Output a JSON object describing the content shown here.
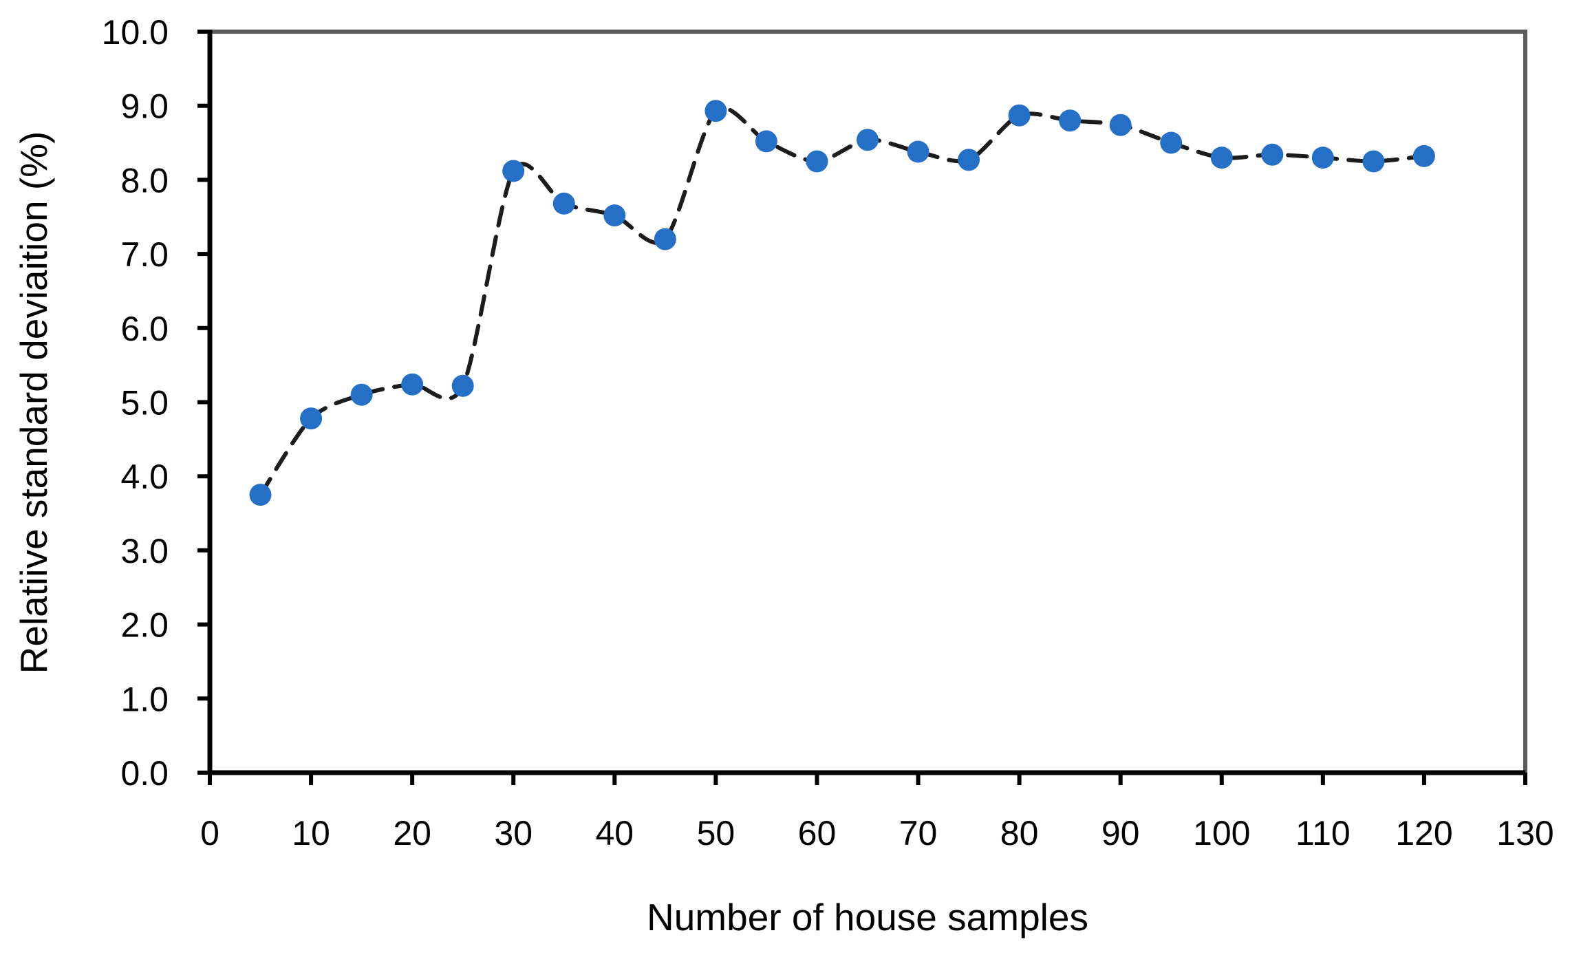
{
  "chart_data": {
    "type": "scatter",
    "title": "",
    "xlabel": "Number of house samples",
    "ylabel": "Relatiive standard deviaition  (%)",
    "x": [
      5,
      10,
      15,
      20,
      25,
      30,
      35,
      40,
      45,
      50,
      55,
      60,
      65,
      70,
      75,
      80,
      85,
      90,
      95,
      100,
      105,
      110,
      115,
      120
    ],
    "y": [
      3.75,
      4.78,
      5.1,
      5.24,
      5.22,
      8.12,
      7.68,
      7.52,
      7.2,
      8.93,
      8.52,
      8.25,
      8.54,
      8.38,
      8.27,
      8.87,
      8.8,
      8.74,
      8.5,
      8.3,
      8.34,
      8.3,
      8.25,
      8.32
    ],
    "xlim": [
      0,
      130
    ],
    "ylim": [
      0.0,
      10.0
    ],
    "xtick_step": 10,
    "ytick_step": 1.0,
    "xtick_labels": [
      "0",
      "10",
      "20",
      "30",
      "40",
      "50",
      "60",
      "70",
      "80",
      "90",
      "100",
      "110",
      "120",
      "130"
    ],
    "ytick_labels": [
      "0.0",
      "1.0",
      "2.0",
      "3.0",
      "4.0",
      "5.0",
      "6.0",
      "7.0",
      "8.0",
      "9.0",
      "10.0"
    ],
    "grid": false,
    "legend": "none",
    "line_style": "dashed",
    "marker": "circle",
    "colors": {
      "marker": "#2570C6",
      "line": "#1c1c1c",
      "axis": "#000000",
      "plot_border": "#5a5a5a",
      "text": "#000000"
    }
  }
}
